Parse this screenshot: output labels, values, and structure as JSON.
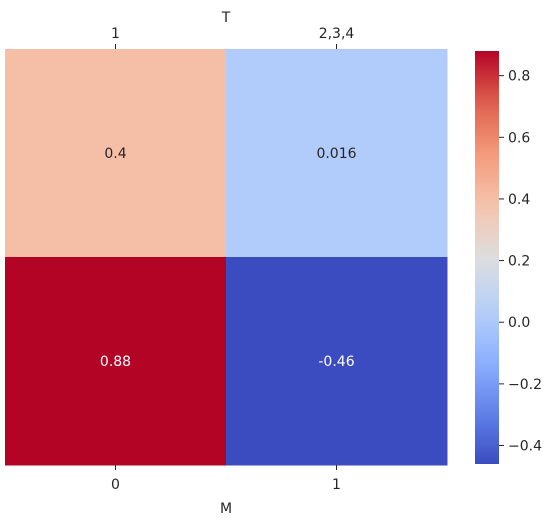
{
  "chart_data": {
    "type": "heatmap",
    "top_axis_label": "T",
    "top_categories": [
      "1",
      "2,3,4"
    ],
    "bottom_axis_label": "M",
    "bottom_categories": [
      "0",
      "1"
    ],
    "rows": [
      {
        "cells": [
          {
            "value": 0.4,
            "label": "0.4"
          },
          {
            "value": 0.016,
            "label": "0.016"
          }
        ]
      },
      {
        "cells": [
          {
            "value": 0.88,
            "label": "0.88"
          },
          {
            "value": -0.46,
            "label": "-0.46"
          }
        ]
      }
    ],
    "colormap": "coolwarm",
    "color_range": [
      -0.46,
      0.88
    ],
    "colorbar": {
      "ticks": [
        -0.4,
        -0.2,
        0.0,
        0.2,
        0.4,
        0.6,
        0.8
      ],
      "tick_labels": [
        "−0.4",
        "−0.2",
        "0.0",
        "0.2",
        "0.4",
        "0.6",
        "0.8"
      ]
    }
  }
}
